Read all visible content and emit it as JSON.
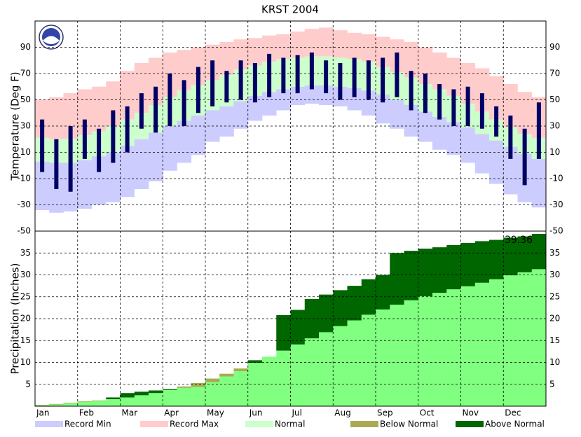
{
  "chart_data": [
    {
      "type": "temperature-range",
      "title": "KRST 2004",
      "ylabel": "Temperature (Deg F)",
      "ylim": [
        -50,
        110
      ],
      "yticks": [
        -50,
        -30,
        -10,
        10,
        30,
        50,
        70,
        90
      ],
      "grid": true,
      "series": [
        {
          "name": "Record Min",
          "color": "#ccccff",
          "values": [
            -34,
            -36,
            -35,
            -33,
            -30,
            -28,
            -24,
            -18,
            -12,
            -4,
            2,
            8,
            18,
            22,
            28,
            34,
            38,
            42,
            46,
            47,
            46,
            45,
            42,
            38,
            32,
            28,
            22,
            18,
            12,
            8,
            2,
            -6,
            -14,
            -22,
            -28,
            -32
          ]
        },
        {
          "name": "Record Max",
          "color": "#ffcccc",
          "values": [
            50,
            52,
            55,
            58,
            60,
            64,
            72,
            78,
            82,
            86,
            88,
            90,
            92,
            94,
            96,
            97,
            99,
            100,
            102,
            104,
            105,
            103,
            101,
            100,
            98,
            96,
            94,
            90,
            86,
            82,
            78,
            74,
            68,
            62,
            56,
            52
          ]
        },
        {
          "name": "Normal",
          "color": "#ccffcc",
          "low": [
            3,
            2,
            2,
            4,
            7,
            10,
            15,
            20,
            25,
            30,
            34,
            38,
            42,
            45,
            49,
            53,
            56,
            58,
            60,
            61,
            61,
            60,
            59,
            57,
            54,
            50,
            46,
            41,
            37,
            33,
            29,
            24,
            19,
            14,
            9,
            5
          ],
          "high": [
            21,
            20,
            20,
            23,
            26,
            30,
            35,
            40,
            46,
            52,
            57,
            61,
            65,
            69,
            73,
            76,
            79,
            81,
            82,
            83,
            83,
            82,
            81,
            79,
            75,
            71,
            67,
            62,
            58,
            53,
            47,
            41,
            35,
            29,
            24,
            21
          ]
        }
      ],
      "observed": {
        "color": "#000066",
        "low": [
          -5,
          -18,
          -20,
          5,
          -5,
          2,
          10,
          28,
          25,
          30,
          30,
          40,
          45,
          48,
          50,
          48,
          52,
          55,
          55,
          58,
          55,
          50,
          52,
          50,
          48,
          52,
          42,
          40,
          35,
          30,
          30,
          28,
          22,
          5,
          -15,
          5
        ],
        "high": [
          35,
          20,
          30,
          35,
          28,
          42,
          45,
          55,
          60,
          70,
          65,
          75,
          80,
          72,
          80,
          78,
          85,
          82,
          84,
          86,
          80,
          78,
          82,
          80,
          82,
          86,
          72,
          70,
          62,
          58,
          60,
          55,
          45,
          38,
          28,
          48
        ]
      }
    },
    {
      "type": "cumulative-precipitation",
      "ylabel": "Precipitation (Inches)",
      "categories": [
        "Jan",
        null,
        null,
        "Feb",
        null,
        null,
        "Mar",
        null,
        null,
        "Apr",
        null,
        null,
        "May",
        null,
        null,
        "Jun",
        null,
        null,
        "Jul",
        null,
        null,
        "Aug",
        null,
        null,
        "Sep",
        null,
        null,
        "Oct",
        null,
        null,
        "Nov",
        null,
        null,
        "Dec",
        null,
        null
      ],
      "ylim": [
        0,
        40
      ],
      "yticks": [
        5,
        10,
        15,
        20,
        25,
        30,
        35
      ],
      "grid": true,
      "normal": {
        "color": "#80ff80",
        "values": [
          0.3,
          0.5,
          0.8,
          1.1,
          1.3,
          1.6,
          2.0,
          2.5,
          3.0,
          3.7,
          4.5,
          5.3,
          6.3,
          7.4,
          8.6,
          9.9,
          11.3,
          12.7,
          14.1,
          15.5,
          16.9,
          18.3,
          19.6,
          20.9,
          22.1,
          23.2,
          24.2,
          25.1,
          25.9,
          26.7,
          27.4,
          28.2,
          29.0,
          29.9,
          30.6,
          31.3
        ]
      },
      "observed": {
        "values": [
          0.2,
          0.4,
          0.7,
          1.0,
          1.2,
          2.0,
          3.0,
          3.3,
          3.6,
          3.9,
          4.2,
          4.4,
          5.5,
          6.8,
          8.0,
          10.5,
          11.3,
          20.8,
          22.0,
          24.5,
          25.5,
          26.5,
          27.5,
          29.0,
          30.0,
          35.0,
          35.5,
          36.0,
          36.3,
          36.8,
          37.3,
          37.7,
          38.0,
          38.5,
          38.8,
          39.36
        ]
      },
      "series": [
        {
          "name": "Below Normal",
          "color": "#aaaa55"
        },
        {
          "name": "Above Normal",
          "color": "#006600"
        }
      ],
      "annotation": "39.36"
    }
  ]
}
